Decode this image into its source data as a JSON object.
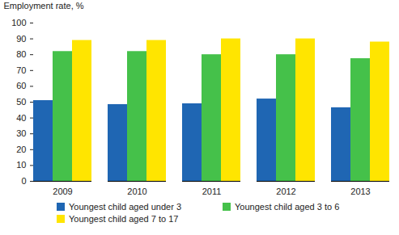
{
  "chart_data": {
    "type": "bar",
    "y_label": "Employment rate, %",
    "categories": [
      "2009",
      "2010",
      "2011",
      "2012",
      "2013"
    ],
    "series": [
      {
        "name": "Youngest child aged under 3",
        "color": "#1f66b3",
        "values": [
          51,
          48.5,
          49,
          52,
          46.5
        ]
      },
      {
        "name": "Youngest child aged 3 to 6",
        "color": "#45c14a",
        "values": [
          82,
          82,
          80,
          80,
          77.5
        ]
      },
      {
        "name": "Youngest child aged 7 to 17",
        "color": "#ffe500",
        "values": [
          89,
          89,
          90,
          90,
          88
        ]
      }
    ],
    "ylim": [
      0,
      100
    ],
    "yticks": [
      0,
      10,
      20,
      30,
      40,
      50,
      60,
      70,
      80,
      90,
      100
    ],
    "grid": false,
    "legend": "bottom"
  }
}
